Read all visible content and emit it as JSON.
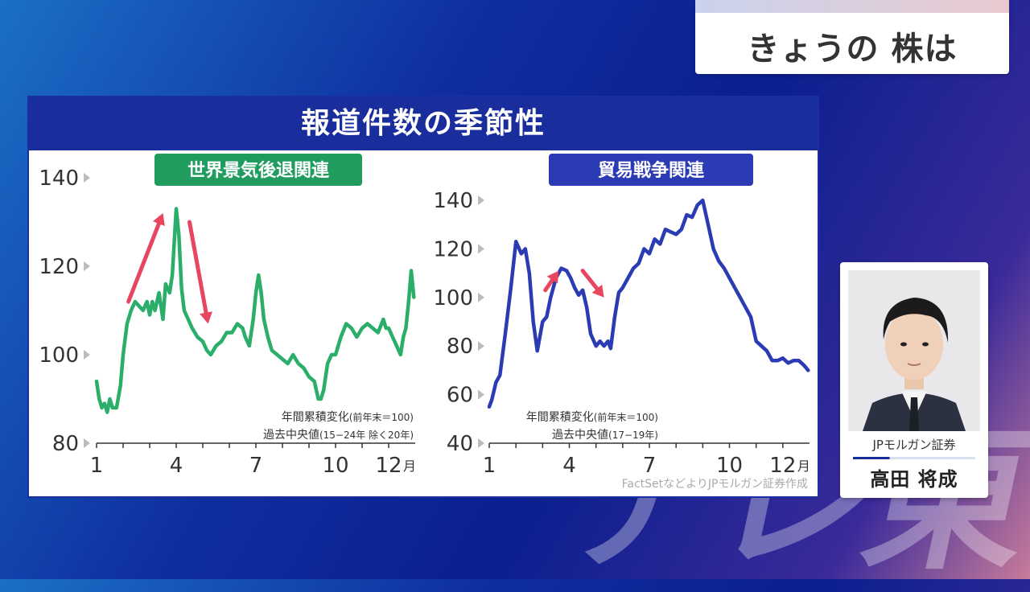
{
  "watermark": "テレ東",
  "segment": {
    "title": "きょうの 株は"
  },
  "panel": {
    "title": "報道件数の季節性",
    "source": "FactSetなどよりJPモルガン証券作成"
  },
  "colors": {
    "left_series": "#2aae6a",
    "right_series": "#2b3bb3",
    "header": "#1a2d9c",
    "arrow": "#e8465f"
  },
  "chart_data": [
    {
      "type": "line",
      "title": "世界景気後退関連",
      "title_bg": "#1f9c5e",
      "note1": "年間累積変化",
      "note1_small": "(前年末＝100)",
      "note2": "過去中央値",
      "note2_small": "(15−24年 除く20年)",
      "ylim": [
        80,
        140
      ],
      "yticks": [
        "140",
        "120",
        "100",
        "80"
      ],
      "yticks_val": [
        140,
        120,
        100,
        80
      ],
      "xticks": [
        "1",
        "4",
        "7",
        "10",
        "12"
      ],
      "xticks_val": [
        1,
        4,
        7,
        10,
        12
      ],
      "x_unit": "月",
      "xlim": [
        1,
        13
      ],
      "series": [
        {
          "color": "#2aae6a",
          "x": [
            1.0,
            1.1,
            1.2,
            1.3,
            1.4,
            1.5,
            1.6,
            1.75,
            1.9,
            2.0,
            2.15,
            2.3,
            2.45,
            2.6,
            2.75,
            2.9,
            3.0,
            3.1,
            3.2,
            3.35,
            3.5,
            3.6,
            3.75,
            3.85,
            4.0,
            4.1,
            4.2,
            4.3,
            4.45,
            4.6,
            4.8,
            5.0,
            5.15,
            5.3,
            5.5,
            5.7,
            5.9,
            6.1,
            6.3,
            6.5,
            6.6,
            6.75,
            6.9,
            7.0,
            7.1,
            7.2,
            7.3,
            7.45,
            7.6,
            7.8,
            8.0,
            8.2,
            8.4,
            8.6,
            8.8,
            9.0,
            9.2,
            9.35,
            9.45,
            9.55,
            9.7,
            9.85,
            10.0,
            10.2,
            10.4,
            10.6,
            10.8,
            11.0,
            11.2,
            11.4,
            11.6,
            11.8,
            11.9,
            12.0,
            12.15,
            12.3,
            12.45,
            12.55,
            12.65,
            12.75,
            12.85,
            12.95
          ],
          "y": [
            94,
            90,
            88,
            89,
            87,
            90,
            88,
            88,
            93,
            100,
            107,
            110,
            112,
            111,
            110,
            112,
            109,
            112,
            110,
            114,
            108,
            116,
            114,
            118,
            133,
            127,
            115,
            110,
            108,
            106,
            104,
            103,
            101,
            100,
            102,
            103,
            105,
            105,
            107,
            106,
            104,
            102,
            108,
            114,
            118,
            114,
            108,
            104,
            101,
            100,
            99,
            98,
            100,
            98,
            97,
            95,
            94,
            90,
            90,
            92,
            98,
            100,
            100,
            104,
            107,
            106,
            104,
            106,
            107,
            106,
            105,
            108,
            106,
            106,
            104,
            102,
            100,
            104,
            106,
            112,
            119,
            113
          ]
        }
      ],
      "arrows": [
        {
          "from": [
            2.2,
            112
          ],
          "to": [
            3.5,
            132
          ]
        },
        {
          "from": [
            4.5,
            130
          ],
          "to": [
            5.2,
            107
          ]
        }
      ]
    },
    {
      "type": "line",
      "title": "貿易戦争関連",
      "title_bg": "#2b3bb3",
      "note1": "年間累積変化",
      "note1_small": "(前年末＝100)",
      "note2": "過去中央値",
      "note2_small": "(17−19年)",
      "ylim": [
        40,
        140
      ],
      "yticks": [
        "140",
        "120",
        "100",
        "80",
        "60",
        "40"
      ],
      "yticks_val": [
        140,
        120,
        100,
        80,
        60,
        40
      ],
      "xticks": [
        "1",
        "4",
        "7",
        "10",
        "12"
      ],
      "xticks_val": [
        1,
        4,
        7,
        10,
        12
      ],
      "x_unit": "月",
      "xlim": [
        1,
        13
      ],
      "series": [
        {
          "color": "#2b3bb3",
          "x": [
            1.0,
            1.1,
            1.25,
            1.4,
            1.6,
            1.8,
            2.0,
            2.2,
            2.35,
            2.5,
            2.65,
            2.8,
            3.0,
            3.15,
            3.3,
            3.5,
            3.7,
            3.9,
            4.05,
            4.2,
            4.35,
            4.5,
            4.65,
            4.8,
            5.0,
            5.15,
            5.3,
            5.45,
            5.55,
            5.7,
            5.85,
            6.0,
            6.2,
            6.4,
            6.6,
            6.8,
            7.0,
            7.2,
            7.4,
            7.6,
            7.8,
            8.0,
            8.2,
            8.4,
            8.6,
            8.8,
            9.0,
            9.2,
            9.4,
            9.6,
            9.8,
            10.0,
            10.2,
            10.4,
            10.6,
            10.8,
            11.0,
            11.2,
            11.4,
            11.6,
            11.8,
            12.0,
            12.2,
            12.4,
            12.6,
            12.8,
            12.95
          ],
          "y": [
            55,
            58,
            65,
            68,
            85,
            103,
            123,
            118,
            120,
            110,
            90,
            78,
            90,
            92,
            100,
            108,
            112,
            111,
            108,
            104,
            101,
            103,
            96,
            85,
            80,
            82,
            80,
            82,
            79,
            92,
            102,
            104,
            108,
            112,
            114,
            120,
            118,
            124,
            122,
            128,
            127,
            126,
            128,
            134,
            133,
            138,
            140,
            130,
            120,
            115,
            112,
            108,
            104,
            100,
            96,
            92,
            82,
            80,
            78,
            74,
            74,
            75,
            73,
            74,
            74,
            72,
            70
          ]
        }
      ],
      "arrows": [
        {
          "from": [
            3.1,
            103
          ],
          "to": [
            3.6,
            111
          ]
        },
        {
          "from": [
            4.5,
            111
          ],
          "to": [
            5.3,
            100
          ]
        }
      ]
    }
  ],
  "person": {
    "company": "JPモルガン証券",
    "name": "高田 将成"
  }
}
